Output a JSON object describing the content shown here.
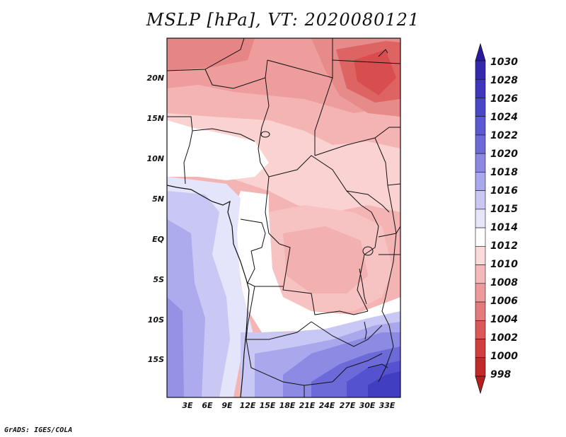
{
  "title": "MSLP [hPa], VT: 2020080121",
  "footer": "GrADS: IGES/COLA",
  "map": {
    "variable": "MSLP",
    "units": "hPa",
    "valid_time": "2020080121",
    "lat_labels": [
      "20N",
      "15N",
      "10N",
      "5N",
      "EQ",
      "5S",
      "10S",
      "15S"
    ],
    "lat_values": [
      20,
      15,
      10,
      5,
      0,
      -5,
      -10,
      -15
    ],
    "lon_labels": [
      "3E",
      "6E",
      "9E",
      "12E",
      "15E",
      "18E",
      "21E",
      "24E",
      "27E",
      "30E",
      "33E"
    ],
    "lon_values": [
      3,
      6,
      9,
      12,
      15,
      18,
      21,
      24,
      27,
      30,
      33
    ],
    "lon_range": [
      0,
      35
    ],
    "lat_range": [
      -20,
      25
    ]
  },
  "colorbar": {
    "labels": [
      "1030",
      "1028",
      "1026",
      "1024",
      "1022",
      "1020",
      "1018",
      "1016",
      "1015",
      "1014",
      "1012",
      "1010",
      "1008",
      "1006",
      "1004",
      "1002",
      "1000",
      "998"
    ],
    "colors": [
      "#2a1aa0",
      "#3428ae",
      "#3e36bc",
      "#4a46c8",
      "#5a58d2",
      "#6c6ad9",
      "#8a88e2",
      "#aaa8ec",
      "#c9c8f4",
      "#e6e6fa",
      "#ffffff",
      "#fbdada",
      "#f6b9b9",
      "#ee9a9a",
      "#e47a7a",
      "#dc5858",
      "#d23e3e",
      "#c22a2a",
      "#b81e1e"
    ]
  },
  "colors": {
    "high": "#2a1aa0",
    "neutral": "#ffffff",
    "low": "#b81e1e",
    "boundary": "#111111"
  }
}
